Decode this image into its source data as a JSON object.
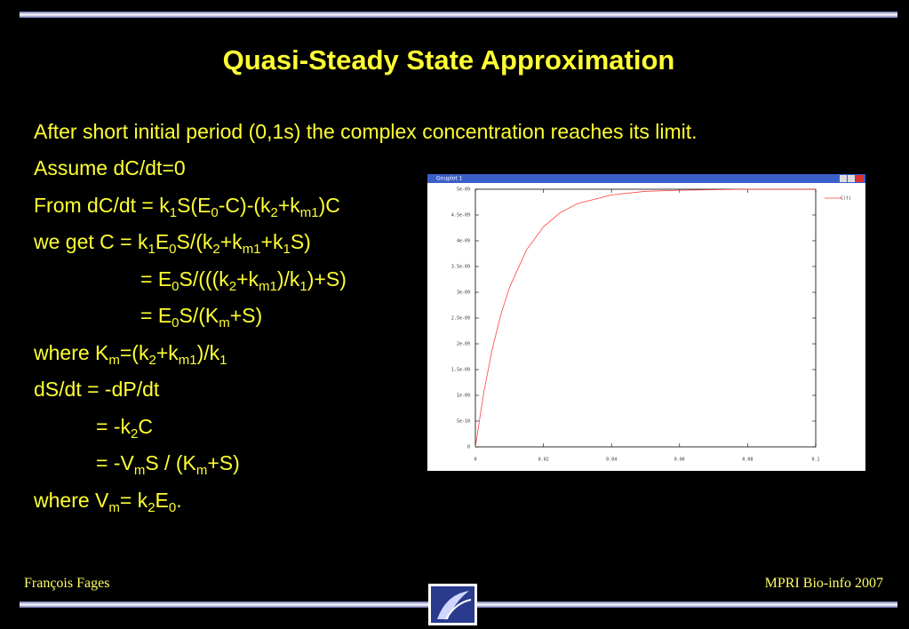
{
  "title": "Quasi-Steady State Approximation",
  "lines": [
    [
      "After short initial period (0,1s) the complex concentration reaches its limit."
    ],
    [
      "Assume dC/dt=0"
    ],
    [
      "From dC/dt = k",
      {
        "sub": "1"
      },
      "S(E",
      {
        "sub": "0"
      },
      "-C)-(k",
      {
        "sub": "2"
      },
      "+k",
      {
        "sub": "m1"
      },
      ")C"
    ],
    [
      "we get C = k",
      {
        "sub": "1"
      },
      "E",
      {
        "sub": "0"
      },
      "S/(k",
      {
        "sub": "2"
      },
      "+k",
      {
        "sub": "m1"
      },
      "+k",
      {
        "sub": "1"
      },
      "S)"
    ],
    [
      "= E",
      {
        "sub": "0"
      },
      "S/(((k",
      {
        "sub": "2"
      },
      "+k",
      {
        "sub": "m1"
      },
      ")/k",
      {
        "sub": "1"
      },
      ")+S)"
    ],
    [
      "= E",
      {
        "sub": "0"
      },
      "S/(K",
      {
        "sub": "m"
      },
      "+S)"
    ],
    [
      "where K",
      {
        "sub": "m"
      },
      "=(k",
      {
        "sub": "2"
      },
      "+k",
      {
        "sub": "m1"
      },
      ")/k",
      {
        "sub": "1"
      }
    ],
    [
      "dS/dt = -dP/dt"
    ],
    [
      "= -k",
      {
        "sub": "2"
      },
      "C"
    ],
    [
      "= -V",
      {
        "sub": "m"
      },
      "S / (K",
      {
        "sub": "m"
      },
      "+S)"
    ],
    [
      "where V",
      {
        "sub": "m"
      },
      "= k",
      {
        "sub": "2"
      },
      "E",
      {
        "sub": "0"
      },
      "."
    ]
  ],
  "plot": {
    "window_title": "Gnuplot 1",
    "chart_data": {
      "type": "line",
      "x": [
        0,
        0.0025,
        0.005,
        0.0075,
        0.01,
        0.015,
        0.02,
        0.025,
        0.03,
        0.04,
        0.05,
        0.06,
        0.08,
        0.1
      ],
      "series": [
        {
          "name": "C(t)",
          "color": "#ff4040",
          "values": [
            0,
            1.07e-09,
            1.91e-09,
            2.57e-09,
            3.09e-09,
            3.82e-09,
            4.27e-09,
            4.55e-09,
            4.72e-09,
            4.89e-09,
            4.96e-09,
            4.98e-09,
            5e-09,
            5e-09
          ]
        }
      ],
      "xlim": [
        0,
        0.1
      ],
      "xticks": [
        0,
        0.02,
        0.04,
        0.06,
        0.08,
        0.1
      ],
      "ylim": [
        0,
        5e-09
      ],
      "yticks": [
        0,
        {
          "value": 5e-10,
          "label": "5e-10"
        },
        {
          "value": 1e-09,
          "label": "1e-09"
        },
        {
          "value": 1.5e-09,
          "label": "1.5e-09"
        },
        {
          "value": 2e-09,
          "label": "2e-09"
        },
        {
          "value": 2.5e-09,
          "label": "2.5e-09"
        },
        {
          "value": 3e-09,
          "label": "3e-09"
        },
        {
          "value": 3.5e-09,
          "label": "3.5e-09"
        },
        {
          "value": 4e-09,
          "label": "4e-09"
        },
        {
          "value": 4.5e-09,
          "label": "4.5e-09"
        },
        {
          "value": 5e-09,
          "label": "5e-09"
        }
      ],
      "legend": "top-right"
    }
  },
  "footer": {
    "author": "François Fages",
    "course": "MPRI Bio-info  2007"
  }
}
